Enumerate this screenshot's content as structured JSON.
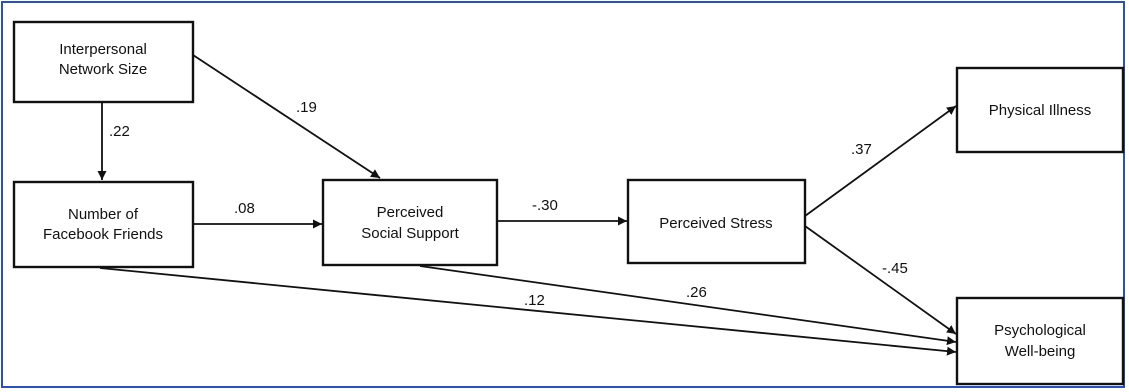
{
  "diagram": {
    "nodes": {
      "network_size": [
        "Interpersonal",
        "Network Size"
      ],
      "facebook_friends": [
        "Number of",
        "Facebook Friends"
      ],
      "social_support": [
        "Perceived",
        "Social Support"
      ],
      "stress": [
        "Perceived Stress"
      ],
      "illness": [
        "Physical Illness"
      ],
      "wellbeing": [
        "Psychological",
        "Well-being"
      ]
    },
    "paths": {
      "network_to_friends": ".22",
      "network_to_support": ".19",
      "friends_to_support": ".08",
      "support_to_stress": "-.30",
      "stress_to_illness": ".37",
      "stress_to_wellbeing": "-.45",
      "support_to_wellbeing": ".26",
      "friends_to_wellbeing": ".12"
    }
  },
  "colors": {
    "frame": "#2a4fc0",
    "stroke": "#111111",
    "background": "#ffffff"
  }
}
